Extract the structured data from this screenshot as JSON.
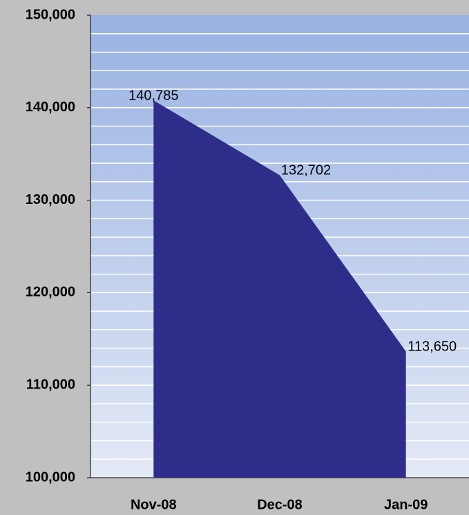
{
  "chart_data": {
    "type": "area",
    "categories": [
      "Nov-08",
      "Dec-08",
      "Jan-09"
    ],
    "values": [
      140785,
      132702,
      113650
    ],
    "value_labels": [
      "140,785",
      "132,702",
      "113,650"
    ],
    "color": "#2e2e8a",
    "ylim": [
      100000,
      150000
    ],
    "yticks": [
      {
        "value": 100000,
        "label": "100,000"
      },
      {
        "value": 110000,
        "label": "110,000"
      },
      {
        "value": 120000,
        "label": "120,000"
      },
      {
        "value": 130000,
        "label": "130,000"
      },
      {
        "value": 140000,
        "label": "140,000"
      },
      {
        "value": 150000,
        "label": "150,000"
      }
    ],
    "ygrid": [
      102000,
      104000,
      106000,
      108000,
      110000,
      112000,
      114000,
      116000,
      118000,
      120000,
      122000,
      124000,
      126000,
      128000,
      130000,
      132000,
      134000,
      136000,
      138000,
      140000,
      142000,
      144000,
      146000,
      148000
    ],
    "grid": true
  }
}
